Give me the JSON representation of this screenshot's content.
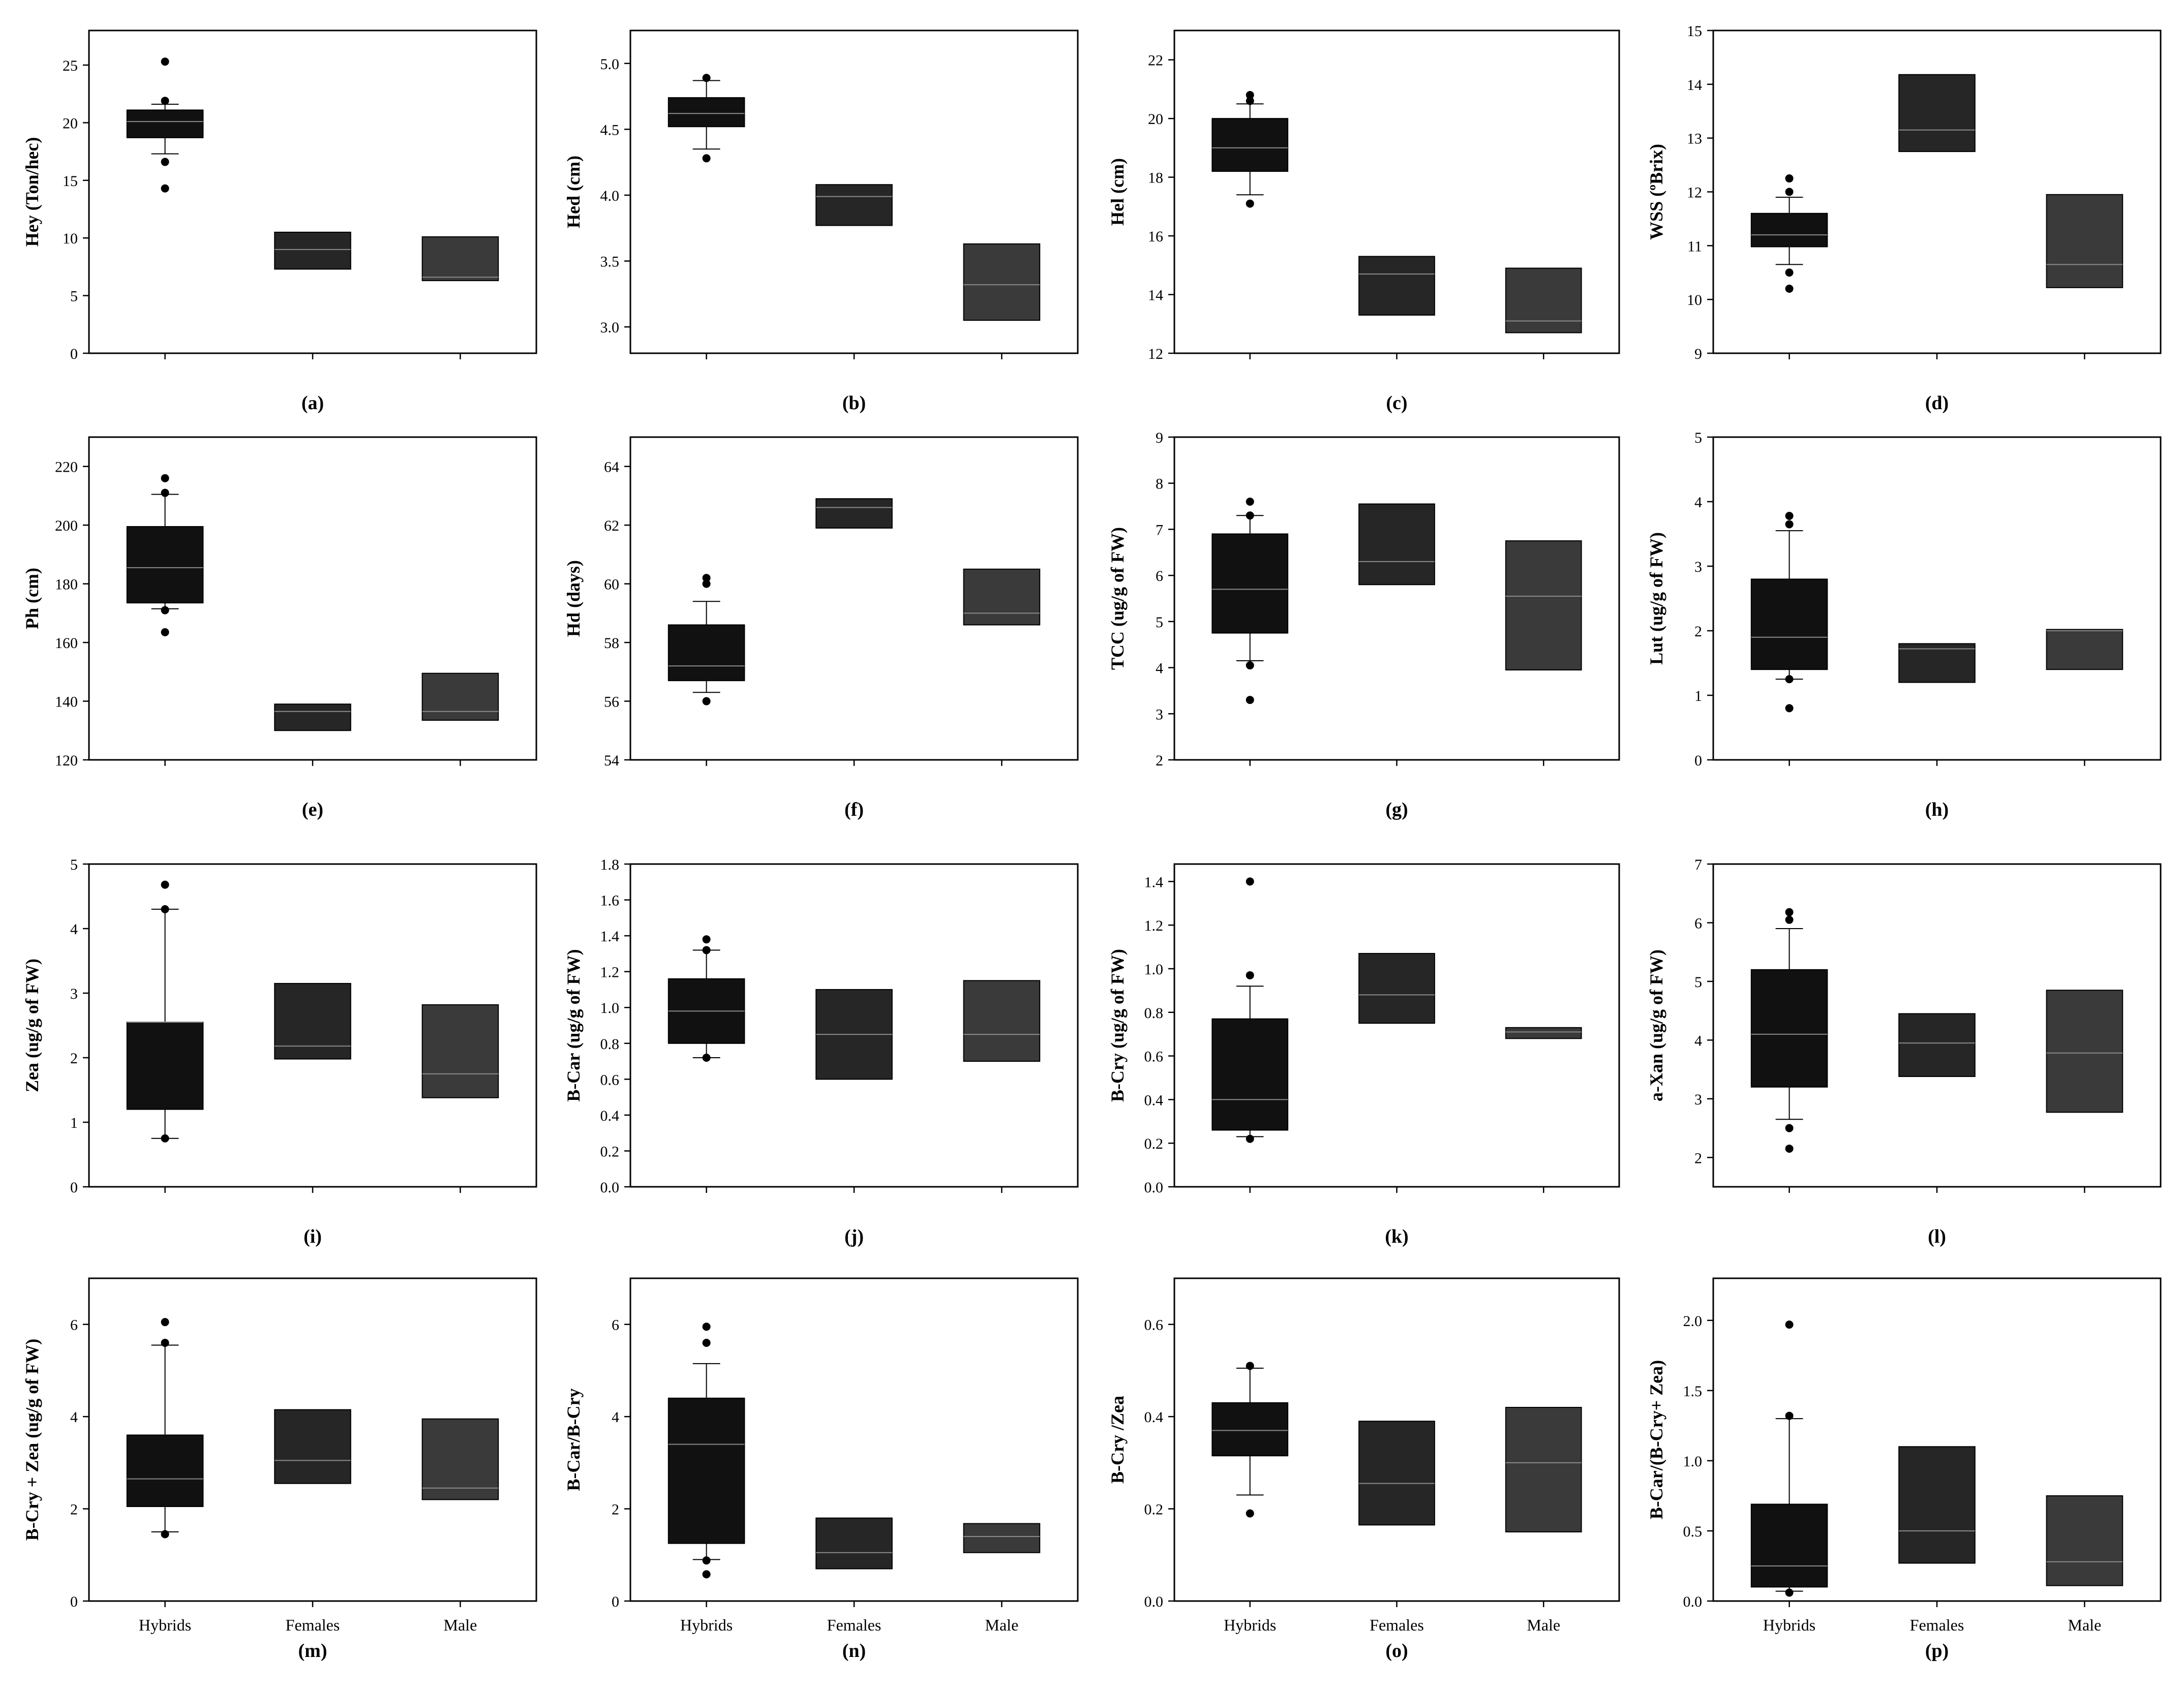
{
  "figure": {
    "background": "#ffffff",
    "box_colors": [
      "#111111",
      "#262626",
      "#3a3a3a"
    ]
  },
  "chart_data": [
    {
      "id": "a",
      "type": "box",
      "panel_label": "(a)",
      "ylabel": "Hey (Ton/hec)",
      "ylim": [
        0,
        28
      ],
      "yticks": [
        "0",
        "5",
        "10",
        "15",
        "20",
        "25"
      ],
      "categories": [],
      "boxes": [
        {
          "q1": 18.7,
          "median": 20.1,
          "q3": 21.1,
          "whisker_low": 17.3,
          "whisker_high": 21.6,
          "outliers": [
            14.3,
            16.6,
            21.9,
            25.3
          ]
        },
        {
          "q1": 7.3,
          "median": 9.0,
          "q3": 10.5,
          "whisker_low": null,
          "whisker_high": null,
          "outliers": []
        },
        {
          "q1": 6.3,
          "median": 6.6,
          "q3": 10.1,
          "whisker_low": null,
          "whisker_high": null,
          "outliers": []
        }
      ]
    },
    {
      "id": "b",
      "type": "box",
      "panel_label": "(b)",
      "ylabel": "Hed (cm)",
      "ylim": [
        2.8,
        5.25
      ],
      "yticks": [
        "3.0",
        "3.5",
        "4.0",
        "4.5",
        "5.0"
      ],
      "categories": [],
      "boxes": [
        {
          "q1": 4.52,
          "median": 4.62,
          "q3": 4.74,
          "whisker_low": 4.35,
          "whisker_high": 4.87,
          "outliers": [
            4.28,
            4.89
          ]
        },
        {
          "q1": 3.77,
          "median": 3.99,
          "q3": 4.08,
          "whisker_low": null,
          "whisker_high": null,
          "outliers": []
        },
        {
          "q1": 3.05,
          "median": 3.32,
          "q3": 3.63,
          "whisker_low": null,
          "whisker_high": null,
          "outliers": []
        }
      ]
    },
    {
      "id": "c",
      "type": "box",
      "panel_label": "(c)",
      "ylabel": "Hel (cm)",
      "ylim": [
        12,
        23
      ],
      "yticks": [
        "12",
        "14",
        "16",
        "18",
        "20",
        "22"
      ],
      "categories": [],
      "boxes": [
        {
          "q1": 18.2,
          "median": 19.0,
          "q3": 20.0,
          "whisker_low": 17.4,
          "whisker_high": 20.5,
          "outliers": [
            17.1,
            20.6,
            20.8
          ]
        },
        {
          "q1": 13.3,
          "median": 14.7,
          "q3": 15.3,
          "whisker_low": null,
          "whisker_high": null,
          "outliers": []
        },
        {
          "q1": 12.7,
          "median": 13.1,
          "q3": 14.9,
          "whisker_low": null,
          "whisker_high": null,
          "outliers": []
        }
      ]
    },
    {
      "id": "d",
      "type": "box",
      "panel_label": "(d)",
      "ylabel": "WSS (ºBrix)",
      "ylim": [
        9,
        15
      ],
      "yticks": [
        "9",
        "10",
        "11",
        "12",
        "13",
        "14",
        "15"
      ],
      "categories": [],
      "boxes": [
        {
          "q1": 10.98,
          "median": 11.2,
          "q3": 11.6,
          "whisker_low": 10.65,
          "whisker_high": 11.9,
          "outliers": [
            10.2,
            10.5,
            12.0,
            12.25
          ]
        },
        {
          "q1": 12.75,
          "median": 13.15,
          "q3": 14.18,
          "whisker_low": null,
          "whisker_high": null,
          "outliers": []
        },
        {
          "q1": 10.22,
          "median": 10.65,
          "q3": 11.95,
          "whisker_low": null,
          "whisker_high": null,
          "outliers": []
        }
      ]
    },
    {
      "id": "e",
      "type": "box",
      "panel_label": "(e)",
      "ylabel": "Ph (cm)",
      "ylim": [
        120,
        230
      ],
      "yticks": [
        "120",
        "140",
        "160",
        "180",
        "200",
        "220"
      ],
      "categories": [],
      "boxes": [
        {
          "q1": 173.5,
          "median": 185.5,
          "q3": 199.5,
          "whisker_low": 171.5,
          "whisker_high": 210.5,
          "outliers": [
            163.5,
            171.0,
            211.0,
            216.0
          ]
        },
        {
          "q1": 130.0,
          "median": 136.5,
          "q3": 139.0,
          "whisker_low": null,
          "whisker_high": null,
          "outliers": []
        },
        {
          "q1": 133.5,
          "median": 136.5,
          "q3": 149.5,
          "whisker_low": null,
          "whisker_high": null,
          "outliers": []
        }
      ]
    },
    {
      "id": "f",
      "type": "box",
      "panel_label": "(f)",
      "ylabel": "Hd (days)",
      "ylim": [
        54,
        65
      ],
      "yticks": [
        "54",
        "56",
        "58",
        "60",
        "62",
        "64"
      ],
      "categories": [],
      "boxes": [
        {
          "q1": 56.7,
          "median": 57.2,
          "q3": 58.6,
          "whisker_low": 56.3,
          "whisker_high": 59.4,
          "outliers": [
            56.0,
            60.0,
            60.2
          ]
        },
        {
          "q1": 61.9,
          "median": 62.6,
          "q3": 62.9,
          "whisker_low": null,
          "whisker_high": null,
          "outliers": []
        },
        {
          "q1": 58.6,
          "median": 59.0,
          "q3": 60.5,
          "whisker_low": null,
          "whisker_high": null,
          "outliers": []
        }
      ]
    },
    {
      "id": "g",
      "type": "box",
      "panel_label": "(g)",
      "ylabel": "TCC (ug/g of FW)",
      "ylim": [
        2,
        9
      ],
      "yticks": [
        "2",
        "3",
        "4",
        "5",
        "6",
        "7",
        "8",
        "9"
      ],
      "categories": [],
      "boxes": [
        {
          "q1": 4.75,
          "median": 5.7,
          "q3": 6.9,
          "whisker_low": 4.15,
          "whisker_high": 7.3,
          "outliers": [
            3.3,
            4.05,
            7.3,
            7.6
          ]
        },
        {
          "q1": 5.8,
          "median": 6.3,
          "q3": 7.55,
          "whisker_low": null,
          "whisker_high": null,
          "outliers": []
        },
        {
          "q1": 3.95,
          "median": 5.55,
          "q3": 6.75,
          "whisker_low": null,
          "whisker_high": null,
          "outliers": []
        }
      ]
    },
    {
      "id": "h",
      "type": "box",
      "panel_label": "(h)",
      "ylabel": "Lut (ug/g of FW)",
      "ylim": [
        0,
        5
      ],
      "yticks": [
        "0",
        "1",
        "2",
        "3",
        "4",
        "5"
      ],
      "categories": [],
      "boxes": [
        {
          "q1": 1.4,
          "median": 1.9,
          "q3": 2.8,
          "whisker_low": 1.25,
          "whisker_high": 3.55,
          "outliers": [
            0.8,
            1.25,
            3.65,
            3.78
          ]
        },
        {
          "q1": 1.2,
          "median": 1.72,
          "q3": 1.8,
          "whisker_low": null,
          "whisker_high": null,
          "outliers": []
        },
        {
          "q1": 1.4,
          "median": 2.0,
          "q3": 2.02,
          "whisker_low": null,
          "whisker_high": null,
          "outliers": []
        }
      ]
    },
    {
      "id": "i",
      "type": "box",
      "panel_label": "(i)",
      "ylabel": "Zea (ug/g of FW)",
      "ylim": [
        0,
        5
      ],
      "yticks": [
        "0",
        "1",
        "2",
        "3",
        "4",
        "5"
      ],
      "categories": [],
      "boxes": [
        {
          "q1": 1.2,
          "median": 2.55,
          "q3": 2.55,
          "whisker_low": 0.75,
          "whisker_high": 4.3,
          "outliers": [
            0.75,
            4.3,
            4.68
          ]
        },
        {
          "q1": 1.98,
          "median": 2.18,
          "q3": 3.15,
          "whisker_low": null,
          "whisker_high": null,
          "outliers": []
        },
        {
          "q1": 1.38,
          "median": 1.75,
          "q3": 2.82,
          "whisker_low": null,
          "whisker_high": null,
          "outliers": []
        }
      ]
    },
    {
      "id": "j",
      "type": "box",
      "panel_label": "(j)",
      "ylabel": "B-Car (ug/g of FW)",
      "ylim": [
        0,
        1.8
      ],
      "yticks": [
        "0.0",
        "0.2",
        "0.4",
        "0.6",
        "0.8",
        "1.0",
        "1.2",
        "1.4",
        "1.6",
        "1.8"
      ],
      "categories": [],
      "boxes": [
        {
          "q1": 0.8,
          "median": 0.98,
          "q3": 1.16,
          "whisker_low": 0.72,
          "whisker_high": 1.32,
          "outliers": [
            0.72,
            1.32,
            1.38
          ]
        },
        {
          "q1": 0.6,
          "median": 0.85,
          "q3": 1.1,
          "whisker_low": null,
          "whisker_high": null,
          "outliers": []
        },
        {
          "q1": 0.7,
          "median": 0.85,
          "q3": 1.15,
          "whisker_low": null,
          "whisker_high": null,
          "outliers": []
        }
      ]
    },
    {
      "id": "k",
      "type": "box",
      "panel_label": "(k)",
      "ylabel": "B-Cry (ug/g of FW)",
      "ylim": [
        0,
        1.48
      ],
      "yticks": [
        "0.0",
        "0.2",
        "0.4",
        "0.6",
        "0.8",
        "1.0",
        "1.2",
        "1.4"
      ],
      "categories": [],
      "boxes": [
        {
          "q1": 0.26,
          "median": 0.4,
          "q3": 0.77,
          "whisker_low": 0.23,
          "whisker_high": 0.92,
          "outliers": [
            0.22,
            0.97,
            1.4
          ]
        },
        {
          "q1": 0.75,
          "median": 0.88,
          "q3": 1.07,
          "whisker_low": null,
          "whisker_high": null,
          "outliers": []
        },
        {
          "q1": 0.68,
          "median": 0.71,
          "q3": 0.73,
          "whisker_low": null,
          "whisker_high": null,
          "outliers": []
        }
      ]
    },
    {
      "id": "l",
      "type": "box",
      "panel_label": "(l)",
      "ylabel": "a-Xan (ug/g of FW)",
      "ylim": [
        1.5,
        7
      ],
      "yticks": [
        "2",
        "3",
        "4",
        "5",
        "6",
        "7"
      ],
      "categories": [],
      "boxes": [
        {
          "q1": 3.2,
          "median": 4.1,
          "q3": 5.2,
          "whisker_low": 2.65,
          "whisker_high": 5.9,
          "outliers": [
            2.15,
            2.5,
            6.05,
            6.18
          ]
        },
        {
          "q1": 3.38,
          "median": 3.95,
          "q3": 4.45,
          "whisker_low": null,
          "whisker_high": null,
          "outliers": []
        },
        {
          "q1": 2.77,
          "median": 3.78,
          "q3": 4.85,
          "whisker_low": null,
          "whisker_high": null,
          "outliers": []
        }
      ]
    },
    {
      "id": "m",
      "type": "box",
      "panel_label": "(m)",
      "ylabel": "B-Cry + Zea (ug/g of FW)",
      "ylim": [
        0,
        7
      ],
      "yticks": [
        "0",
        "2",
        "4",
        "6"
      ],
      "categories": [
        "Hybrids",
        "Females",
        "Male"
      ],
      "boxes": [
        {
          "q1": 2.05,
          "median": 2.65,
          "q3": 3.6,
          "whisker_low": 1.5,
          "whisker_high": 5.55,
          "outliers": [
            1.45,
            5.6,
            6.05
          ]
        },
        {
          "q1": 2.55,
          "median": 3.05,
          "q3": 4.15,
          "whisker_low": null,
          "whisker_high": null,
          "outliers": []
        },
        {
          "q1": 2.2,
          "median": 2.45,
          "q3": 3.95,
          "whisker_low": null,
          "whisker_high": null,
          "outliers": []
        }
      ]
    },
    {
      "id": "n",
      "type": "box",
      "panel_label": "(n)",
      "ylabel": "B-Car/B-Cry",
      "ylim": [
        0,
        7
      ],
      "yticks": [
        "0",
        "2",
        "4",
        "6"
      ],
      "categories": [
        "Hybrids",
        "Females",
        "Male"
      ],
      "boxes": [
        {
          "q1": 1.25,
          "median": 3.4,
          "q3": 4.4,
          "whisker_low": 0.9,
          "whisker_high": 5.15,
          "outliers": [
            0.58,
            0.88,
            5.6,
            5.95
          ]
        },
        {
          "q1": 0.7,
          "median": 1.05,
          "q3": 1.8,
          "whisker_low": null,
          "whisker_high": null,
          "outliers": []
        },
        {
          "q1": 1.05,
          "median": 1.4,
          "q3": 1.68,
          "whisker_low": null,
          "whisker_high": null,
          "outliers": []
        }
      ]
    },
    {
      "id": "o",
      "type": "box",
      "panel_label": "(o)",
      "ylabel": "B-Cry /Zea",
      "ylim": [
        0,
        0.7
      ],
      "yticks": [
        "0.0",
        "0.2",
        "0.4",
        "0.6"
      ],
      "categories": [
        "Hybrids",
        "Females",
        "Male"
      ],
      "boxes": [
        {
          "q1": 0.315,
          "median": 0.37,
          "q3": 0.43,
          "whisker_low": 0.23,
          "whisker_high": 0.505,
          "outliers": [
            0.19,
            0.51
          ]
        },
        {
          "q1": 0.165,
          "median": 0.255,
          "q3": 0.39,
          "whisker_low": null,
          "whisker_high": null,
          "outliers": []
        },
        {
          "q1": 0.15,
          "median": 0.3,
          "q3": 0.42,
          "whisker_low": null,
          "whisker_high": null,
          "outliers": []
        }
      ]
    },
    {
      "id": "p",
      "type": "box",
      "panel_label": "(p)",
      "ylabel": "B-Car/(B-Cry+ Zea)",
      "ylim": [
        0,
        2.3
      ],
      "yticks": [
        "0.0",
        "0.5",
        "1.0",
        "1.5",
        "2.0"
      ],
      "categories": [
        "Hybrids",
        "Females",
        "Male"
      ],
      "boxes": [
        {
          "q1": 0.1,
          "median": 0.25,
          "q3": 0.69,
          "whisker_low": 0.07,
          "whisker_high": 1.3,
          "outliers": [
            0.06,
            1.32,
            1.97
          ]
        },
        {
          "q1": 0.27,
          "median": 0.5,
          "q3": 1.1,
          "whisker_low": null,
          "whisker_high": null,
          "outliers": []
        },
        {
          "q1": 0.11,
          "median": 0.28,
          "q3": 0.75,
          "whisker_low": null,
          "whisker_high": null,
          "outliers": []
        }
      ]
    }
  ]
}
